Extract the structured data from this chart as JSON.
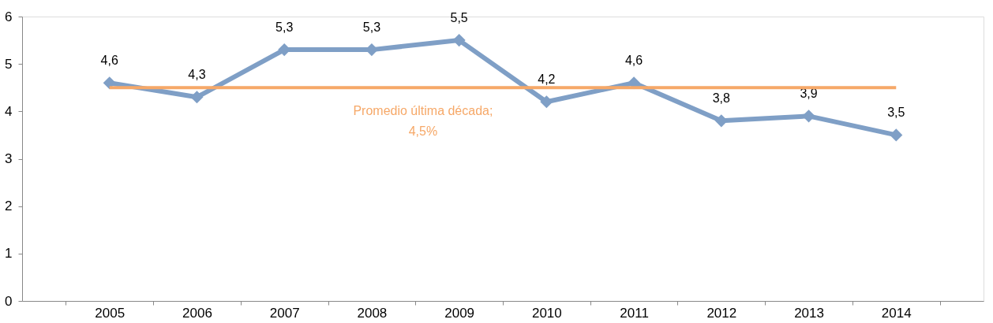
{
  "chart_data": {
    "type": "line",
    "categories": [
      "2005",
      "2006",
      "2007",
      "2008",
      "2009",
      "2010",
      "2011",
      "2012",
      "2013",
      "2014"
    ],
    "series": [
      {
        "color": "#7f9fc6",
        "values": [
          4.6,
          4.3,
          5.3,
          5.3,
          5.5,
          4.2,
          4.6,
          3.8,
          3.9,
          3.5
        ],
        "value_labels": [
          "4,6",
          "4,3",
          "5,3",
          "5,3",
          "5,5",
          "4,2",
          "4,6",
          "3,8",
          "3,9",
          "3,5"
        ]
      }
    ],
    "ylim": [
      0,
      6
    ],
    "yticks": [
      0,
      1,
      2,
      3,
      4,
      5,
      6
    ],
    "ref_lines": [
      {
        "axis": "y",
        "value": 4.5,
        "label": "Promedio última década;\n4,5%",
        "color": "#f6a868"
      }
    ],
    "grid": false,
    "marker": "diamond",
    "line_style": "solid"
  }
}
